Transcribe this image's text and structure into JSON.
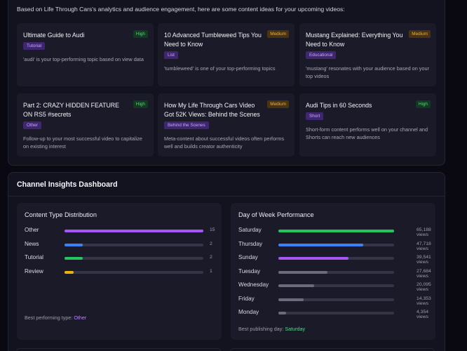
{
  "intro": "Based on Life Through Cars's analytics and audience engagement, here are some content ideas for your upcoming videos:",
  "ideas": [
    {
      "title": "Ultimate Guide to Audi",
      "priority": "High",
      "tag": "Tutorial",
      "desc": "'audi' is your top-performing topic based on view data"
    },
    {
      "title": "10 Advanced Tumbleweed Tips You Need to Know",
      "priority": "Medium",
      "tag": "List",
      "desc": "'tumbleweed' is one of your top-performing topics"
    },
    {
      "title": "Mustang Explained: Everything You Need to Know",
      "priority": "Medium",
      "tag": "Educational",
      "desc": "'mustang' resonates with your audience based on your top videos"
    },
    {
      "title": "Part 2: CRAZY HIDDEN FEATURE ON RS5 #secrets",
      "priority": "High",
      "tag": "Other",
      "desc": "Follow-up to your most successful video to capitalize on existing interest"
    },
    {
      "title": "How My Life Through Cars Video Got 52K Views: Behind the Scenes",
      "priority": "Medium",
      "tag": "Behind the Scenes",
      "desc": "Meta-content about successful videos often performs well and builds creator authenticity"
    },
    {
      "title": "Audi Tips in 60 Seconds",
      "priority": "High",
      "tag": "Short",
      "desc": "Short-form content performs well on your channel and Shorts can reach new audiences"
    }
  ],
  "insights": {
    "title": "Channel Insights Dashboard",
    "content_type": {
      "title": "Content Type Distribution",
      "max": 15,
      "rows": [
        {
          "label": "Other",
          "value": 15,
          "color": "#a855f7"
        },
        {
          "label": "News",
          "value": 2,
          "color": "#3b82f6"
        },
        {
          "label": "Tutorial",
          "value": 2,
          "color": "#22c55e"
        },
        {
          "label": "Review",
          "value": 1,
          "color": "#eab308"
        }
      ],
      "foot_label": "Best performing type:",
      "foot_value": "Other"
    },
    "day_of_week": {
      "title": "Day of Week Performance",
      "max": 65188,
      "rows": [
        {
          "label": "Saturday",
          "value": 65188,
          "display": "65,188 views",
          "color": "#22c55e"
        },
        {
          "label": "Thursday",
          "value": 47718,
          "display": "47,718 views",
          "color": "#3b82f6"
        },
        {
          "label": "Sunday",
          "value": 39541,
          "display": "39,541 views",
          "color": "#a855f7"
        },
        {
          "label": "Tuesday",
          "value": 27684,
          "display": "27,684 views",
          "color": "#6b6b7e"
        },
        {
          "label": "Wednesday",
          "value": 20095,
          "display": "20,095 views",
          "color": "#6b6b7e"
        },
        {
          "label": "Friday",
          "value": 14353,
          "display": "14,353 views",
          "color": "#6b6b7e"
        },
        {
          "label": "Monday",
          "value": 4354,
          "display": "4,354 views",
          "color": "#6b6b7e"
        }
      ],
      "foot_label": "Best publishing day:",
      "foot_value": "Saturday"
    }
  }
}
